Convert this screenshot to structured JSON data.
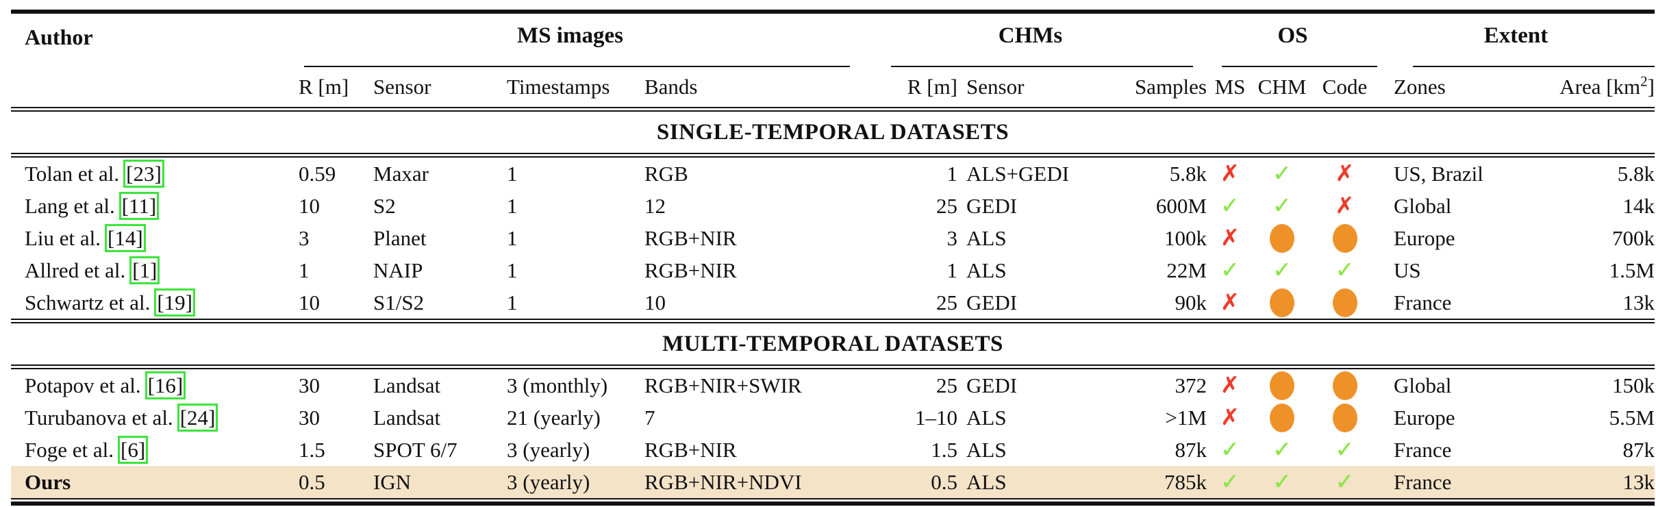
{
  "colors": {
    "highlight_row_bg": "#f5e3c8",
    "check_green": "#8ce54b",
    "cross_red": "#ee3a2a",
    "partial_orange": "#ef9129",
    "citation_box_green": "#3ce43c"
  },
  "icons": {
    "check": "✓",
    "cross": "✗",
    "dot": "●"
  },
  "table": {
    "headers": {
      "author": "Author",
      "group_ms": "MS images",
      "group_chms": "CHMs",
      "group_os": "OS",
      "group_extent": "Extent",
      "ms_r": "R [m]",
      "ms_sensor": "Sensor",
      "timestamps": "Timestamps",
      "bands": "Bands",
      "chm_r": "R [m]",
      "chm_sensor": "Sensor",
      "samples": "Samples",
      "os_ms": "MS",
      "os_chm": "CHM",
      "os_code": "Code",
      "zones": "Zones",
      "area_pre": "Area [km",
      "area_sup": "2",
      "area_post": "]"
    },
    "sections": [
      {
        "title": "SINGLE-TEMPORAL DATASETS",
        "rows": [
          {
            "author": "Tolan et al.",
            "cite": "[23]",
            "ms_r": "0.59",
            "ms_sensor": "Maxar",
            "timestamps": "1",
            "bands": "RGB",
            "chm_r": "1",
            "chm_sensor": "ALS+GEDI",
            "samples": "5.8k",
            "os_ms": "cross",
            "os_chm": "check",
            "os_code": "cross",
            "zones": "US, Brazil",
            "area": "5.8k",
            "highlight": false,
            "bold": false
          },
          {
            "author": "Lang et al.",
            "cite": "[11]",
            "ms_r": "10",
            "ms_sensor": "S2",
            "timestamps": "1",
            "bands": "12",
            "chm_r": "25",
            "chm_sensor": "GEDI",
            "samples": "600M",
            "os_ms": "check",
            "os_chm": "check",
            "os_code": "cross",
            "zones": "Global",
            "area": "14k",
            "highlight": false,
            "bold": false
          },
          {
            "author": "Liu et al.",
            "cite": "[14]",
            "ms_r": "3",
            "ms_sensor": "Planet",
            "timestamps": "1",
            "bands": "RGB+NIR",
            "chm_r": "3",
            "chm_sensor": "ALS",
            "samples": "100k",
            "os_ms": "cross",
            "os_chm": "dot",
            "os_code": "dot",
            "zones": "Europe",
            "area": "700k",
            "highlight": false,
            "bold": false
          },
          {
            "author": "Allred et al.",
            "cite": "[1]",
            "ms_r": "1",
            "ms_sensor": "NAIP",
            "timestamps": "1",
            "bands": "RGB+NIR",
            "chm_r": "1",
            "chm_sensor": "ALS",
            "samples": "22M",
            "os_ms": "check",
            "os_chm": "check",
            "os_code": "check",
            "zones": "US",
            "area": "1.5M",
            "highlight": false,
            "bold": false
          },
          {
            "author": "Schwartz et al.",
            "cite": "[19]",
            "ms_r": "10",
            "ms_sensor": "S1/S2",
            "timestamps": "1",
            "bands": "10",
            "chm_r": "25",
            "chm_sensor": "GEDI",
            "samples": "90k",
            "os_ms": "cross",
            "os_chm": "dot",
            "os_code": "dot",
            "zones": "France",
            "area": "13k",
            "highlight": false,
            "bold": false
          }
        ]
      },
      {
        "title": "MULTI-TEMPORAL DATASETS",
        "rows": [
          {
            "author": "Potapov et al.",
            "cite": "[16]",
            "ms_r": "30",
            "ms_sensor": "Landsat",
            "timestamps": "3 (monthly)",
            "bands": "RGB+NIR+SWIR",
            "chm_r": "25",
            "chm_sensor": "GEDI",
            "samples": "372",
            "os_ms": "cross",
            "os_chm": "dot",
            "os_code": "dot",
            "zones": "Global",
            "area": "150k",
            "highlight": false,
            "bold": false
          },
          {
            "author": "Turubanova et al.",
            "cite": "[24]",
            "ms_r": "30",
            "ms_sensor": "Landsat",
            "timestamps": "21 (yearly)",
            "bands": "7",
            "chm_r": "1–10",
            "chm_sensor": "ALS",
            "samples": ">1M",
            "os_ms": "cross",
            "os_chm": "dot",
            "os_code": "dot",
            "zones": "Europe",
            "area": "5.5M",
            "highlight": false,
            "bold": false
          },
          {
            "author": "Foge et al.",
            "cite": "[6]",
            "ms_r": "1.5",
            "ms_sensor": "SPOT 6/7",
            "timestamps": "3 (yearly)",
            "bands": "RGB+NIR",
            "chm_r": "1.5",
            "chm_sensor": "ALS",
            "samples": "87k",
            "os_ms": "check",
            "os_chm": "check",
            "os_code": "check",
            "zones": "France",
            "area": "87k",
            "highlight": false,
            "bold": false
          },
          {
            "author": "Ours",
            "cite": null,
            "ms_r": "0.5",
            "ms_sensor": "IGN",
            "timestamps": "3 (yearly)",
            "bands": "RGB+NIR+NDVI",
            "chm_r": "0.5",
            "chm_sensor": "ALS",
            "samples": "785k",
            "os_ms": "check",
            "os_chm": "check",
            "os_code": "check",
            "zones": "France",
            "area": "13k",
            "highlight": true,
            "bold": true
          }
        ]
      }
    ]
  }
}
